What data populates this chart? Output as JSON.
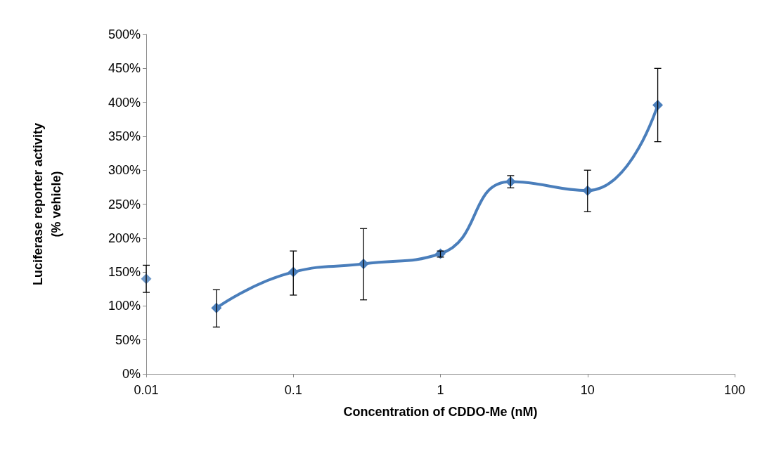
{
  "chart_data": {
    "type": "line",
    "xlabel": "Concentration of CDDO-Me (nM)",
    "ylabel": "Luciferase reporter activity\n(% vehicle)",
    "log": "x",
    "xlim": [
      0.01,
      100
    ],
    "xticks": [
      0.01,
      0.1,
      1,
      10,
      100
    ],
    "ylim": [
      0,
      500
    ],
    "yticks": [
      {
        "value": 0,
        "label": "0%"
      },
      {
        "value": 50,
        "label": "50%"
      },
      {
        "value": 100,
        "label": "100%"
      },
      {
        "value": 150,
        "label": "150%"
      },
      {
        "value": 200,
        "label": "200%"
      },
      {
        "value": 250,
        "label": "250%"
      },
      {
        "value": 300,
        "label": "300%"
      },
      {
        "value": 350,
        "label": "350%"
      },
      {
        "value": 400,
        "label": "400%"
      },
      {
        "value": 450,
        "label": "450%"
      },
      {
        "value": 500,
        "label": "500%"
      }
    ],
    "grid": false,
    "marker": "diamond",
    "line_style": "solid",
    "series": [
      {
        "type": "scatter",
        "color": "#4a7ebb",
        "x": [
          0.01
        ],
        "values": [
          140
        ],
        "errors": [
          [
            120,
            160
          ]
        ]
      },
      {
        "color": "#4a7ebb",
        "x": [
          0.03,
          0.1,
          0.3,
          1,
          3,
          10,
          30
        ],
        "values": [
          97,
          150,
          162,
          177,
          283,
          270,
          396
        ],
        "errors": [
          [
            69,
            124
          ],
          [
            116,
            181
          ],
          [
            109,
            214
          ],
          [
            172,
            181
          ],
          [
            274,
            292
          ],
          [
            239,
            300
          ],
          [
            342,
            450
          ]
        ]
      }
    ]
  }
}
